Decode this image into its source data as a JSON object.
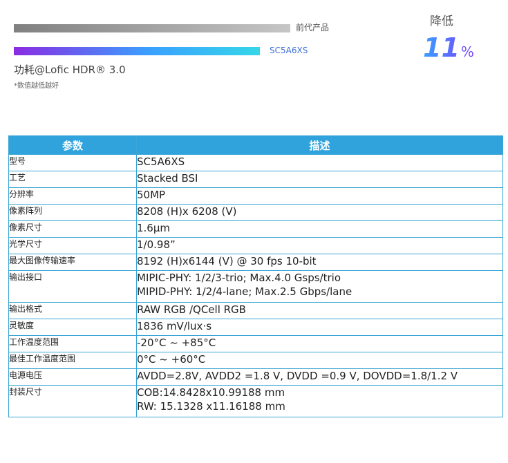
{
  "power": {
    "prev_label": "前代产品",
    "new_label": "SC5A6XS",
    "prev_value": 1.0,
    "new_value": 0.89,
    "title": "功耗@Lofic HDR® 3.0",
    "note": "*数值越低越好",
    "reduce_label": "降低",
    "reduce_value": "11",
    "reduce_unit": "%"
  },
  "table": {
    "headers": [
      "参数",
      "描述"
    ],
    "rows": [
      {
        "param": "型号",
        "desc": [
          "SC5A6XS"
        ]
      },
      {
        "param": "工艺",
        "desc": [
          "Stacked BSI"
        ]
      },
      {
        "param": "分辨率",
        "desc": [
          "50MP"
        ]
      },
      {
        "param": "像素阵列",
        "desc": [
          "8208 (H)x 6208 (V)"
        ]
      },
      {
        "param": "像素尺寸",
        "desc": [
          "1.6μm"
        ]
      },
      {
        "param": "光学尺寸",
        "desc": [
          "1/0.98”"
        ]
      },
      {
        "param": "最大图像传输速率",
        "desc": [
          "8192 (H)x6144 (V) @ 30 fps 10-bit"
        ]
      },
      {
        "param": "输出接口",
        "desc": [
          "MIPIC-PHY: 1/2/3-trio; Max.4.0 Gsps/trio",
          "MIPID-PHY: 1/2/4-lane; Max.2.5 Gbps/lane"
        ]
      },
      {
        "param": "输出格式",
        "desc": [
          "RAW RGB /QCell RGB"
        ]
      },
      {
        "param": "灵敏度",
        "desc": [
          "1836 mV/lux·s"
        ]
      },
      {
        "param": "工作温度范围",
        "desc": [
          "-20°C ~ +85°C"
        ]
      },
      {
        "param": "最佳工作温度范围",
        "desc": [
          "0°C ~ +60°C"
        ]
      },
      {
        "param": "电源电压",
        "desc": [
          "AVDD=2.8V, AVDD2 =1.8 V, DVDD =0.9 V, DOVDD=1.8/1.2 V"
        ]
      },
      {
        "param": "封装尺寸",
        "desc": [
          "COB:14.8428x10.99188 mm",
          "RW: 15.1328 x11.16188 mm"
        ]
      }
    ]
  }
}
